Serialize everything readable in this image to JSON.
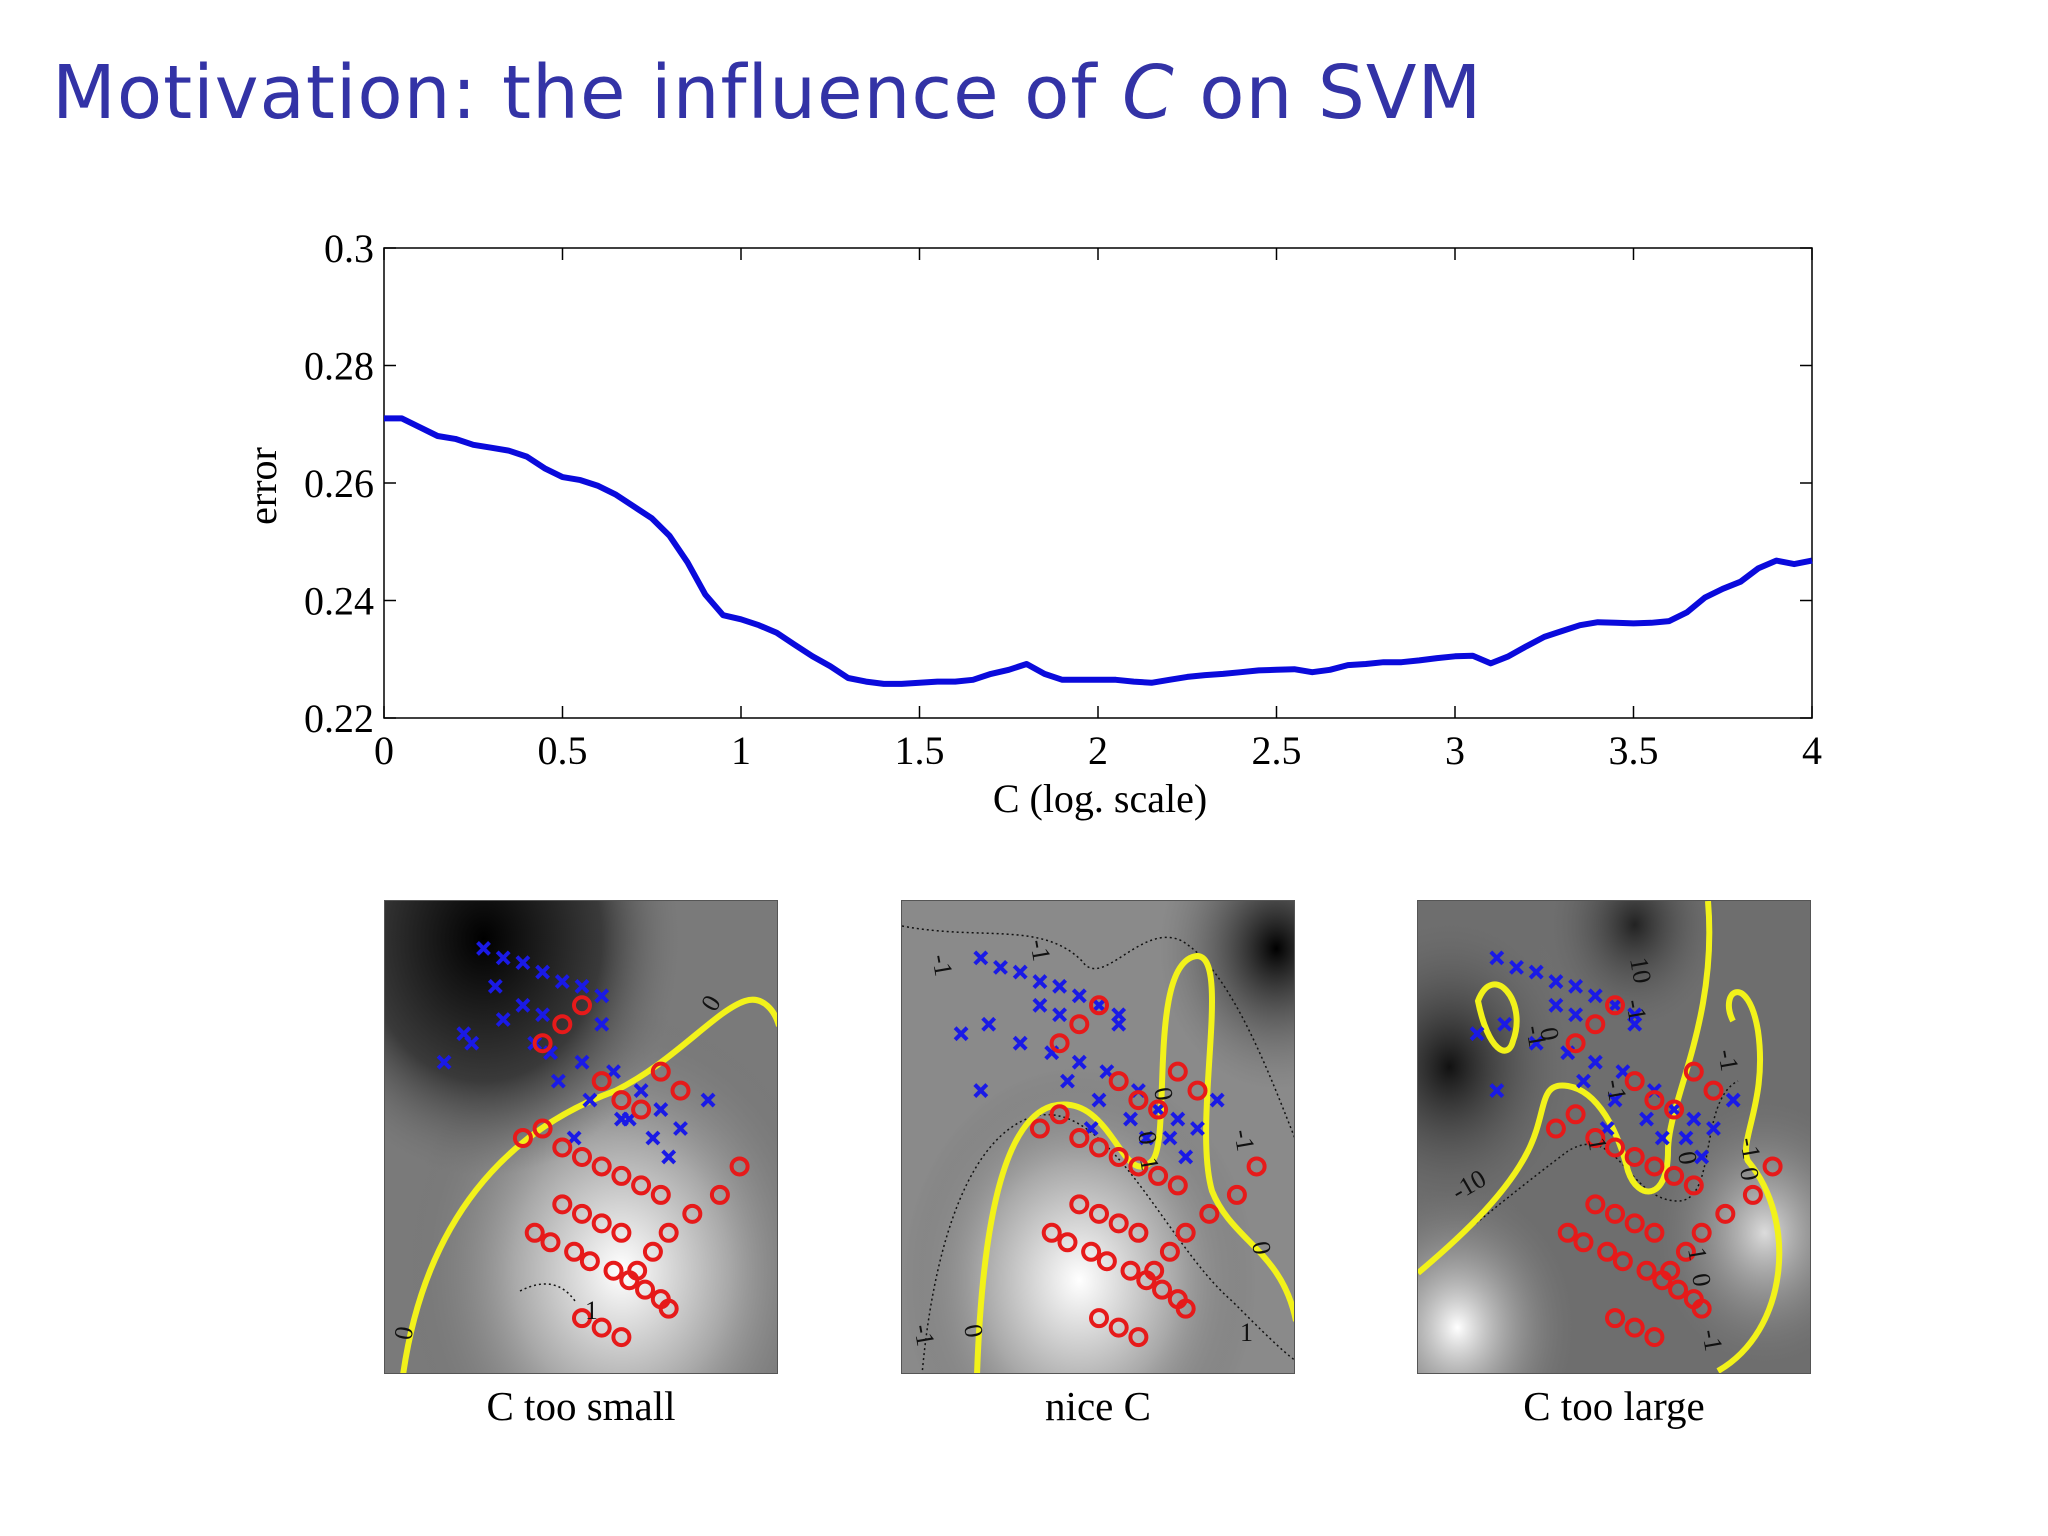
{
  "slide": {
    "title_prefix": "Motivation: the influence of ",
    "title_var": "C",
    "title_suffix": " on SVM"
  },
  "chart_data": [
    {
      "type": "line",
      "xlabel": "C (log. scale)",
      "ylabel": "error",
      "xlim": [
        0,
        4
      ],
      "ylim": [
        0.22,
        0.3
      ],
      "xticks": [
        0,
        0.5,
        1,
        1.5,
        2,
        2.5,
        3,
        3.5,
        4
      ],
      "xtick_labels": [
        "0",
        "0.5",
        "1",
        "1.5",
        "2",
        "2.5",
        "3",
        "3.5",
        "4"
      ],
      "yticks": [
        0.22,
        0.24,
        0.26,
        0.28,
        0.3
      ],
      "ytick_labels": [
        "0.22",
        "0.24",
        "0.26",
        "0.28",
        "0.3"
      ],
      "grid": false,
      "series": [
        {
          "color": "#0a0adc",
          "x": [
            0,
            0.05,
            0.1,
            0.15,
            0.2,
            0.25,
            0.3,
            0.35,
            0.4,
            0.45,
            0.5,
            0.55,
            0.6,
            0.65,
            0.7,
            0.75,
            0.8,
            0.85,
            0.9,
            0.95,
            1.0,
            1.05,
            1.1,
            1.15,
            1.2,
            1.25,
            1.3,
            1.35,
            1.4,
            1.45,
            1.5,
            1.55,
            1.6,
            1.65,
            1.7,
            1.75,
            1.8,
            1.85,
            1.9,
            1.95,
            2.0,
            2.05,
            2.1,
            2.15,
            2.2,
            2.25,
            2.3,
            2.35,
            2.4,
            2.45,
            2.5,
            2.55,
            2.6,
            2.65,
            2.7,
            2.75,
            2.8,
            2.85,
            2.9,
            2.95,
            3.0,
            3.05,
            3.1,
            3.15,
            3.2,
            3.25,
            3.3,
            3.35,
            3.4,
            3.45,
            3.5,
            3.55,
            3.6,
            3.65,
            3.7,
            3.75,
            3.8,
            3.85,
            3.9,
            3.95,
            4.0
          ],
          "y": [
            0.271,
            0.271,
            0.2695,
            0.268,
            0.2675,
            0.2665,
            0.266,
            0.2655,
            0.2645,
            0.2625,
            0.261,
            0.2605,
            0.2595,
            0.258,
            0.256,
            0.254,
            0.251,
            0.2465,
            0.241,
            0.2375,
            0.2368,
            0.2358,
            0.2345,
            0.2325,
            0.2305,
            0.2288,
            0.2268,
            0.2262,
            0.2258,
            0.2258,
            0.226,
            0.2262,
            0.2262,
            0.2265,
            0.2275,
            0.2282,
            0.2292,
            0.2275,
            0.2265,
            0.2265,
            0.2265,
            0.2265,
            0.2262,
            0.226,
            0.2265,
            0.227,
            0.2273,
            0.2275,
            0.2278,
            0.2281,
            0.2282,
            0.2283,
            0.2278,
            0.2282,
            0.229,
            0.2292,
            0.2295,
            0.2295,
            0.2298,
            0.2302,
            0.2305,
            0.2306,
            0.2293,
            0.2305,
            0.2322,
            0.2338,
            0.2348,
            0.2358,
            0.2363,
            0.2362,
            0.2361,
            0.2362,
            0.2365,
            0.238,
            0.2405,
            0.242,
            0.2432,
            0.2455,
            0.2468,
            0.2462,
            0.2468
          ]
        }
      ]
    },
    {
      "type": "scatter",
      "caption": "C too small",
      "contour_labels": [
        "0",
        "0",
        "1"
      ],
      "series": [
        {
          "marker": "x",
          "color": "#1a1ae6",
          "x": [
            0.25,
            0.3,
            0.35,
            0.4,
            0.45,
            0.5,
            0.55,
            0.2,
            0.3,
            0.38,
            0.42,
            0.5,
            0.58,
            0.65,
            0.7,
            0.62,
            0.48,
            0.35,
            0.28,
            0.55,
            0.75,
            0.82,
            0.15,
            0.22,
            0.44,
            0.52,
            0.6,
            0.68,
            0.72,
            0.4
          ],
          "y": [
            0.9,
            0.88,
            0.87,
            0.85,
            0.83,
            0.82,
            0.8,
            0.72,
            0.75,
            0.7,
            0.68,
            0.66,
            0.64,
            0.6,
            0.56,
            0.54,
            0.5,
            0.78,
            0.82,
            0.74,
            0.52,
            0.58,
            0.66,
            0.7,
            0.62,
            0.58,
            0.54,
            0.5,
            0.46,
            0.76
          ]
        },
        {
          "marker": "o",
          "color": "#e61a1a",
          "x": [
            0.35,
            0.4,
            0.45,
            0.5,
            0.55,
            0.6,
            0.65,
            0.7,
            0.45,
            0.5,
            0.55,
            0.6,
            0.38,
            0.42,
            0.48,
            0.52,
            0.58,
            0.62,
            0.66,
            0.7,
            0.72,
            0.5,
            0.55,
            0.6,
            0.64,
            0.68,
            0.72,
            0.78,
            0.85,
            0.9,
            0.4,
            0.45,
            0.5,
            0.55,
            0.6,
            0.65,
            0.7,
            0.75
          ],
          "y": [
            0.5,
            0.52,
            0.48,
            0.46,
            0.44,
            0.42,
            0.4,
            0.38,
            0.36,
            0.34,
            0.32,
            0.3,
            0.3,
            0.28,
            0.26,
            0.24,
            0.22,
            0.2,
            0.18,
            0.16,
            0.14,
            0.12,
            0.1,
            0.08,
            0.22,
            0.26,
            0.3,
            0.34,
            0.38,
            0.44,
            0.7,
            0.74,
            0.78,
            0.62,
            0.58,
            0.56,
            0.64,
            0.6
          ]
        }
      ]
    },
    {
      "type": "scatter",
      "caption": "nice C",
      "contour_labels": [
        "-1",
        "-1",
        "0",
        "0",
        "-1",
        "0",
        "1",
        "-1",
        "0",
        "1"
      ],
      "series": [
        {
          "marker": "x",
          "color": "#1a1ae6",
          "x": [
            0.2,
            0.25,
            0.3,
            0.35,
            0.4,
            0.45,
            0.5,
            0.55,
            0.15,
            0.22,
            0.3,
            0.38,
            0.45,
            0.52,
            0.6,
            0.65,
            0.7,
            0.62,
            0.48,
            0.35,
            0.55,
            0.75,
            0.8,
            0.2,
            0.42,
            0.5,
            0.58,
            0.68,
            0.72,
            0.4
          ],
          "y": [
            0.88,
            0.86,
            0.85,
            0.83,
            0.82,
            0.8,
            0.78,
            0.76,
            0.72,
            0.74,
            0.7,
            0.68,
            0.66,
            0.64,
            0.6,
            0.56,
            0.54,
            0.5,
            0.52,
            0.78,
            0.74,
            0.52,
            0.58,
            0.6,
            0.62,
            0.58,
            0.54,
            0.5,
            0.46,
            0.76
          ]
        },
        {
          "marker": "o",
          "color": "#e61a1a",
          "x": [
            0.35,
            0.4,
            0.45,
            0.5,
            0.55,
            0.6,
            0.65,
            0.7,
            0.45,
            0.5,
            0.55,
            0.6,
            0.38,
            0.42,
            0.48,
            0.52,
            0.58,
            0.62,
            0.66,
            0.7,
            0.72,
            0.5,
            0.55,
            0.6,
            0.64,
            0.68,
            0.72,
            0.78,
            0.85,
            0.9,
            0.4,
            0.45,
            0.5,
            0.55,
            0.6,
            0.65,
            0.7,
            0.75
          ],
          "y": [
            0.52,
            0.55,
            0.5,
            0.48,
            0.46,
            0.44,
            0.42,
            0.4,
            0.36,
            0.34,
            0.32,
            0.3,
            0.3,
            0.28,
            0.26,
            0.24,
            0.22,
            0.2,
            0.18,
            0.16,
            0.14,
            0.12,
            0.1,
            0.08,
            0.22,
            0.26,
            0.3,
            0.34,
            0.38,
            0.44,
            0.7,
            0.74,
            0.78,
            0.62,
            0.58,
            0.56,
            0.64,
            0.6
          ]
        }
      ]
    },
    {
      "type": "scatter",
      "caption": "C too large",
      "contour_labels": [
        "10",
        "-1",
        "-1",
        "0",
        "-1",
        "1",
        "-1",
        "-10",
        "0",
        "-1",
        "0",
        "1",
        "0",
        "-1"
      ],
      "series": [
        {
          "marker": "x",
          "color": "#1a1ae6",
          "x": [
            0.2,
            0.25,
            0.3,
            0.35,
            0.4,
            0.45,
            0.5,
            0.55,
            0.15,
            0.22,
            0.3,
            0.38,
            0.45,
            0.52,
            0.6,
            0.65,
            0.7,
            0.62,
            0.48,
            0.35,
            0.55,
            0.75,
            0.8,
            0.2,
            0.42,
            0.5,
            0.58,
            0.68,
            0.72,
            0.4
          ],
          "y": [
            0.88,
            0.86,
            0.85,
            0.83,
            0.82,
            0.8,
            0.78,
            0.76,
            0.72,
            0.74,
            0.7,
            0.68,
            0.66,
            0.64,
            0.6,
            0.56,
            0.54,
            0.5,
            0.52,
            0.78,
            0.74,
            0.52,
            0.58,
            0.6,
            0.62,
            0.58,
            0.54,
            0.5,
            0.46,
            0.76
          ]
        },
        {
          "marker": "o",
          "color": "#e61a1a",
          "x": [
            0.35,
            0.4,
            0.45,
            0.5,
            0.55,
            0.6,
            0.65,
            0.7,
            0.45,
            0.5,
            0.55,
            0.6,
            0.38,
            0.42,
            0.48,
            0.52,
            0.58,
            0.62,
            0.66,
            0.7,
            0.72,
            0.5,
            0.55,
            0.6,
            0.64,
            0.68,
            0.72,
            0.78,
            0.85,
            0.9,
            0.4,
            0.45,
            0.5,
            0.55,
            0.6,
            0.65,
            0.7,
            0.75
          ],
          "y": [
            0.52,
            0.55,
            0.5,
            0.48,
            0.46,
            0.44,
            0.42,
            0.4,
            0.36,
            0.34,
            0.32,
            0.3,
            0.3,
            0.28,
            0.26,
            0.24,
            0.22,
            0.2,
            0.18,
            0.16,
            0.14,
            0.12,
            0.1,
            0.08,
            0.22,
            0.26,
            0.3,
            0.34,
            0.38,
            0.44,
            0.7,
            0.74,
            0.78,
            0.62,
            0.58,
            0.56,
            0.64,
            0.6
          ]
        }
      ]
    }
  ]
}
